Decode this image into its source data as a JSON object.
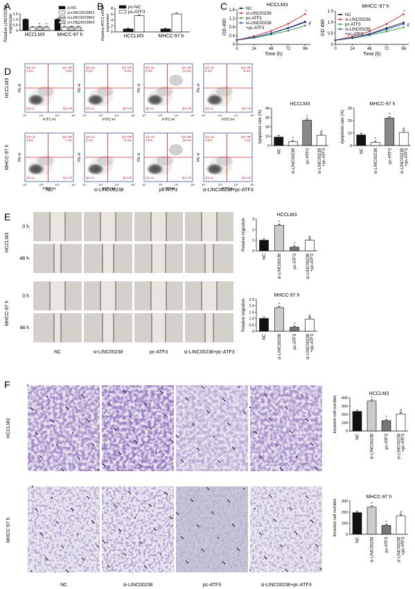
{
  "panelA": {
    "letter": "A",
    "ylabel": "Relative LINC00238 expression",
    "legend": [
      "si-NC",
      "si-LINC00238#1",
      "si-LINC00238#2",
      "si-LINC00238#3"
    ],
    "groups": [
      "HCCLM3",
      "MHCC-97 h"
    ],
    "chart_data": {
      "type": "bar",
      "categories": [
        "HCCLM3",
        "MHCC-97 h"
      ],
      "series": [
        {
          "name": "si-NC",
          "values": [
            1.0,
            1.0
          ]
        },
        {
          "name": "si-LINC00238#1",
          "values": [
            0.3,
            0.31
          ]
        },
        {
          "name": "si-LINC00238#2",
          "values": [
            0.32,
            0.32
          ]
        },
        {
          "name": "si-LINC00238#3",
          "values": [
            0.31,
            0.31
          ]
        }
      ],
      "ylim": [
        0,
        1.5
      ],
      "yticks": [
        "0",
        "0.5",
        "1.0",
        "1.5"
      ]
    },
    "marks": [
      "*",
      "*",
      "*",
      "*",
      "*",
      "*"
    ]
  },
  "panelB": {
    "letter": "B",
    "ylabel": "Relative ATF3 mRNA expression",
    "legend": [
      "pc-NC",
      "pc-ATF3"
    ],
    "groups": [
      "HCCLM3",
      "MHCC-97 h"
    ],
    "chart_data": {
      "type": "bar",
      "categories": [
        "HCCLM3",
        "MHCC-97 h"
      ],
      "series": [
        {
          "name": "pc-NC",
          "values": [
            1.0,
            1.0
          ]
        },
        {
          "name": "pc-ATF3",
          "values": [
            5.5,
            6.1
          ]
        }
      ],
      "ylim": [
        0,
        8
      ],
      "yticks": [
        "0",
        "2",
        "4",
        "6",
        "8"
      ]
    }
  },
  "panelC": {
    "letter": "C",
    "legend": [
      "NC",
      "si-LINC00238",
      "pc-ATF3",
      "si-LINC00238 +pc-ATF3"
    ],
    "colors": [
      "#000000",
      "#e0201b",
      "#1d9b2e",
      "#1f3fc9"
    ],
    "charts": [
      {
        "title": "HCCLM3",
        "ylabel": "OD 490",
        "xlabel": "Time (h)",
        "xticks": [
          "0",
          "24",
          "48",
          "72",
          "96"
        ],
        "yticks": [
          "0",
          "0.4",
          "0.8",
          "1.2",
          "1.6"
        ],
        "chart_data": {
          "type": "line",
          "x": [
            0,
            24,
            48,
            72,
            96
          ],
          "series": [
            {
              "name": "NC",
              "values": [
                0.2,
                0.33,
                0.52,
                0.76,
                1.05
              ]
            },
            {
              "name": "si-LINC00238",
              "values": [
                0.2,
                0.38,
                0.62,
                0.95,
                1.4
              ]
            },
            {
              "name": "pc-ATF3",
              "values": [
                0.2,
                0.3,
                0.45,
                0.63,
                0.87
              ]
            },
            {
              "name": "si-LINC00238 +pc-ATF3",
              "values": [
                0.2,
                0.33,
                0.51,
                0.74,
                1.02
              ]
            }
          ],
          "ylim": [
            0,
            1.6
          ]
        },
        "marks": [
          "*",
          "*",
          "#"
        ]
      },
      {
        "title": "MHCC-97 h",
        "ylabel": "OD 490",
        "xlabel": "Time (h)",
        "xticks": [
          "0",
          "24",
          "48",
          "72",
          "96"
        ],
        "yticks": [
          "0",
          "0.5",
          "1.0",
          "1.5"
        ],
        "chart_data": {
          "type": "line",
          "x": [
            0,
            24,
            48,
            72,
            96
          ],
          "series": [
            {
              "name": "NC",
              "values": [
                0.2,
                0.32,
                0.5,
                0.78,
                1.05
              ]
            },
            {
              "name": "si-LINC00238",
              "values": [
                0.2,
                0.38,
                0.62,
                0.98,
                1.45
              ]
            },
            {
              "name": "pc-ATF3",
              "values": [
                0.2,
                0.29,
                0.44,
                0.62,
                0.82
              ]
            },
            {
              "name": "si-LINC00238 +pc-ATF3",
              "values": [
                0.2,
                0.32,
                0.48,
                0.72,
                0.98
              ]
            }
          ],
          "ylim": [
            0,
            1.6
          ]
        },
        "marks": [
          "*",
          "*",
          "#"
        ]
      }
    ]
  },
  "panelD": {
    "letter": "D",
    "rowlabels": [
      "HCCLM3",
      "MHCC-97 h"
    ],
    "collabels": [
      "NC",
      "si-LINC00238",
      "pc-ATF3",
      "si-LINC00238+pc-ATF3"
    ],
    "axis": {
      "x": "FITC-H",
      "y": "PE-H"
    },
    "quad": [
      "Q1-UL",
      "Q1-UR",
      "Q1-LL",
      "Q1-LR"
    ],
    "pct": [
      [
        [
          "4.2%",
          "7.8%"
        ],
        [
          "0.2%",
          "0.9%"
        ],
        [
          "0.2%",
          "11.0%"
        ],
        [
          "0.4%",
          "8.6%"
        ]
      ],
      [
        [
          "0.6%",
          "7.4%"
        ],
        [
          "0.4%",
          "0.4%"
        ],
        [
          "0.5%",
          "15.9%"
        ],
        [
          "0.3%",
          "7.2%"
        ]
      ]
    ],
    "bars": [
      {
        "title": "HCCLM3",
        "ylabel": "Apoptosis rate (%)",
        "yticks": [
          "0",
          "10",
          "20",
          "30",
          "40"
        ],
        "categories": [
          "NC",
          "si-LINC00238",
          "pc-ATF3",
          "si-LINC00238 +pc-ATF3"
        ],
        "chart_data": {
          "type": "bar",
          "categories": [
            "NC",
            "si-LINC00238",
            "pc-ATF3",
            "si-LINC00238 +pc-ATF3"
          ],
          "values": [
            9,
            4,
            27,
            11
          ],
          "ylim": [
            0,
            40
          ]
        },
        "marks": [
          "",
          "*",
          "*",
          "#"
        ]
      },
      {
        "title": "MHCC-97 h",
        "ylabel": "Apoptosis rate (%)",
        "yticks": [
          "0",
          "10",
          "20",
          "30"
        ],
        "categories": [
          "NC",
          "si-LINC00238",
          "pc-ATF3",
          "si-LINC00238 +pc-ATF3"
        ],
        "chart_data": {
          "type": "bar",
          "categories": [
            "NC",
            "si-LINC00238",
            "pc-ATF3",
            "si-LINC00238 +pc-ATF3"
          ],
          "values": [
            8.5,
            2.5,
            22,
            10.5
          ],
          "ylim": [
            0,
            30
          ]
        },
        "marks": [
          "",
          "*",
          "*",
          "#"
        ]
      }
    ]
  },
  "panelE": {
    "letter": "E",
    "rowlabels": [
      "HCCLM3",
      "MHCC-97 h"
    ],
    "timelabels": [
      "0 h",
      "48 h",
      "0 h",
      "48 h"
    ],
    "collabels": [
      "NC",
      "si-LINC00238",
      "pc-ATF3",
      "si-LINC00238+pc-ATF3"
    ],
    "bars": [
      {
        "title": "HCCLM3",
        "ylabel": "Relative migration",
        "yticks": [
          "0",
          "1",
          "2",
          "3"
        ],
        "categories": [
          "NC",
          "si-LINC00238",
          "pc-ATF3",
          "si-LINC00238 +pc-ATF3"
        ],
        "chart_data": {
          "type": "bar",
          "categories": [
            "NC",
            "si-LINC00238",
            "pc-ATF3",
            "si-LINC00238 +pc-ATF3"
          ],
          "values": [
            1.0,
            2.4,
            0.35,
            1.0
          ],
          "ylim": [
            0,
            3
          ]
        },
        "marks": [
          "",
          "*",
          "*",
          "#"
        ]
      },
      {
        "title": "MHCC-97 h",
        "ylabel": "Relative migration",
        "yticks": [
          "0",
          "0.5",
          "1.0",
          "1.5",
          "2.0",
          "2.5"
        ],
        "categories": [
          "NC",
          "si-LINC00238",
          "pc-ATF3",
          "si-LINC00238 +pc-ATF3"
        ],
        "chart_data": {
          "type": "bar",
          "categories": [
            "NC",
            "si-LINC00238",
            "pc-ATF3",
            "si-LINC00238 +pc-ATF3"
          ],
          "values": [
            1.0,
            1.85,
            0.32,
            0.95
          ],
          "ylim": [
            0,
            2.5
          ]
        },
        "marks": [
          "",
          "*",
          "*",
          "#"
        ]
      }
    ]
  },
  "panelF": {
    "letter": "F",
    "rowlabels": [
      "HCCLM3",
      "MHCC-97 h"
    ],
    "collabels": [
      "NC",
      "si-LINC00238",
      "pc-ATF3",
      "si-LINC00238+pc-ATF3"
    ],
    "bars": [
      {
        "title": "HCCLM3",
        "ylabel": "Invasion cell number",
        "yticks": [
          "0",
          "100",
          "200",
          "300",
          "400"
        ],
        "categories": [
          "NC",
          "si-LINC00238",
          "pc-ATF3",
          "si-LINC00238 +pc-ATF3"
        ],
        "chart_data": {
          "type": "bar",
          "categories": [
            "NC",
            "si-LINC00238",
            "pc-ATF3",
            "si-LINC00238 +pc-ATF3"
          ],
          "values": [
            235,
            360,
            125,
            205
          ],
          "ylim": [
            0,
            400
          ]
        },
        "marks": [
          "",
          "*",
          "*",
          "#"
        ]
      },
      {
        "title": "MHCC-97 h",
        "ylabel": "Invasion cell number",
        "yticks": [
          "0",
          "100",
          "200",
          "300"
        ],
        "categories": [
          "NC",
          "si-LINC00238",
          "pc-ATF3",
          "si-LINC00238 +pc-ATF3"
        ],
        "chart_data": {
          "type": "bar",
          "categories": [
            "NC",
            "si-LINC00238",
            "pc-ATF3",
            "si-LINC00238 +pc-ATF3"
          ],
          "values": [
            195,
            245,
            80,
            165
          ],
          "ylim": [
            0,
            300
          ]
        },
        "marks": [
          "",
          "*",
          "*",
          "#"
        ]
      }
    ]
  }
}
